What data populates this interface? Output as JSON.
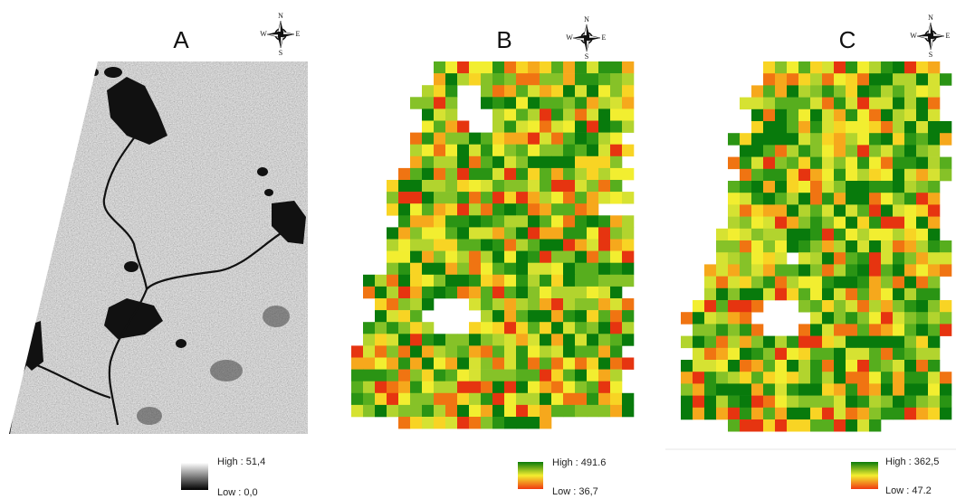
{
  "panels": [
    {
      "label": "A",
      "compass": {
        "north": "N",
        "east": "E",
        "south": "S",
        "west": "W"
      },
      "legend": {
        "high": "High : 51,4",
        "low": "Low : 0,0"
      }
    },
    {
      "label": "B",
      "compass": {
        "north": "N",
        "east": "E",
        "south": "S",
        "west": "W"
      },
      "legend": {
        "high": "High : 491.6",
        "low": "Low : 36,7"
      }
    },
    {
      "label": "C",
      "compass": {
        "north": "N",
        "east": "E",
        "south": "S",
        "west": "W"
      },
      "legend": {
        "high": "High : 362,5",
        "low": "Low : 47.2"
      }
    }
  ]
}
